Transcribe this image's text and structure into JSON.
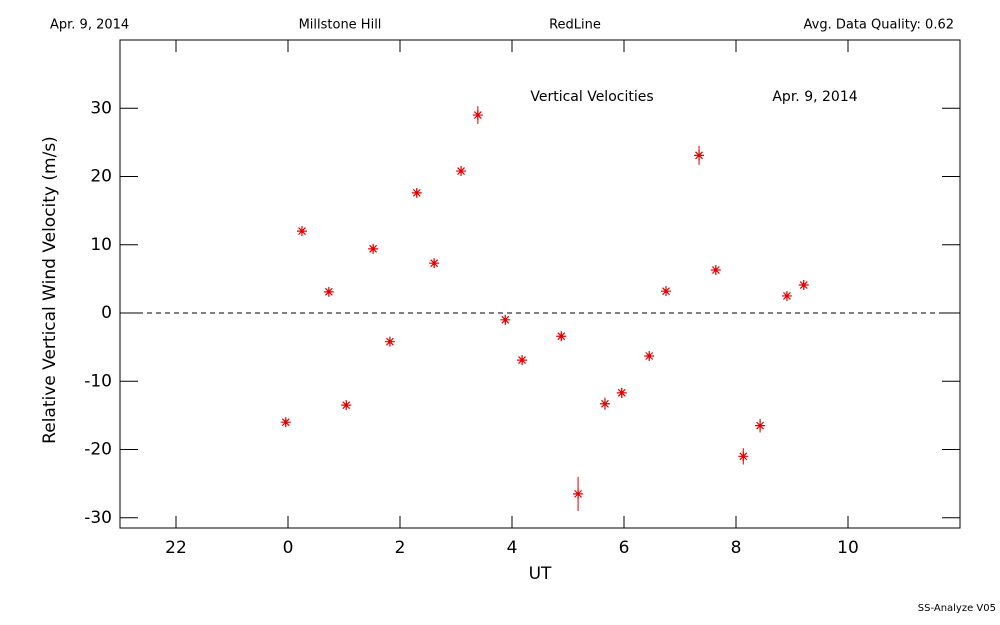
{
  "header": {
    "date": "Apr. 9, 2014",
    "site": "Millstone Hill",
    "instrument": "RedLine",
    "quality": "Avg. Data Quality: 0.62"
  },
  "footer": "SS-Analyze V05",
  "chart_data": {
    "type": "scatter",
    "title": "Vertical Velocities",
    "annotation": "Apr. 9, 2014",
    "x_label": "UT",
    "y_label": "Relative Vertical Wind Velocity (m/s)",
    "color": "#e00000",
    "reference_line": 0,
    "xlim": [
      -3,
      12
    ],
    "ylim": [
      -31.5,
      40
    ],
    "xticks": [
      {
        "value": -2,
        "label": "22"
      },
      0,
      2,
      4,
      6,
      8,
      10
    ],
    "yticks": [
      -30,
      -20,
      -10,
      0,
      10,
      20,
      30
    ],
    "x": [
      -0.04,
      0.25,
      0.73,
      1.04,
      1.52,
      1.82,
      2.3,
      2.61,
      3.09,
      3.39,
      3.88,
      4.18,
      4.88,
      5.18,
      5.66,
      5.96,
      6.45,
      6.75,
      7.34,
      7.64,
      8.13,
      8.43,
      8.91,
      9.21
    ],
    "values": [
      -16,
      12,
      3.1,
      -13.5,
      9.4,
      -4.2,
      17.6,
      7.3,
      20.8,
      29,
      -1,
      -6.9,
      -3.4,
      -26.5,
      -13.3,
      -11.7,
      -6.3,
      3.2,
      23.1,
      6.3,
      -21,
      -16.5,
      2.5,
      4.1
    ],
    "errors": [
      0.5,
      0.5,
      0.5,
      0.5,
      0.5,
      0.5,
      0.5,
      0.5,
      0.6,
      1.3,
      0.5,
      0.5,
      0.5,
      2.5,
      0.9,
      0.7,
      0.5,
      0.5,
      1.4,
      0.5,
      1.2,
      1.0,
      0.5,
      0.5
    ]
  }
}
